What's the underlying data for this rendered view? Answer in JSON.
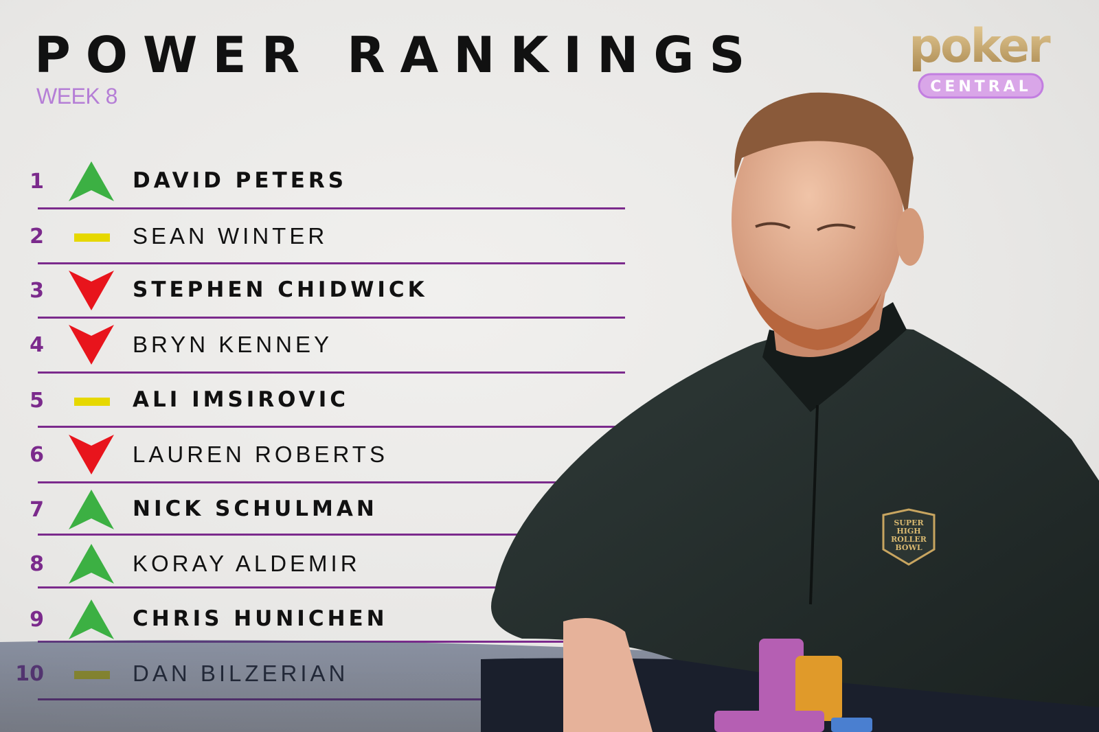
{
  "header": {
    "title": "POWER RANKINGS",
    "subtitle": "WEEK 8"
  },
  "logo": {
    "text_top": "poker",
    "text_bottom": "CENTRAL"
  },
  "badge": {
    "text": "SUPER HIGH ROLLER BOWL"
  },
  "colors": {
    "up": "#3cb043",
    "down": "#e8141c",
    "same": "#e6d800",
    "accent": "#7b2a8c",
    "week": "#b57ed6"
  },
  "rankings": [
    {
      "rank": "1",
      "name": "DAVID PETERS",
      "movement": "up",
      "bold": true
    },
    {
      "rank": "2",
      "name": "SEAN WINTER",
      "movement": "same",
      "bold": false
    },
    {
      "rank": "3",
      "name": "STEPHEN CHIDWICK",
      "movement": "down",
      "bold": true
    },
    {
      "rank": "4",
      "name": "BRYN KENNEY",
      "movement": "down",
      "bold": false
    },
    {
      "rank": "5",
      "name": "ALI IMSIROVIC",
      "movement": "same",
      "bold": true
    },
    {
      "rank": "6",
      "name": "LAUREN ROBERTS",
      "movement": "down",
      "bold": false
    },
    {
      "rank": "7",
      "name": "NICK SCHULMAN",
      "movement": "up",
      "bold": true
    },
    {
      "rank": "8",
      "name": "KORAY ALDEMIR",
      "movement": "up",
      "bold": false
    },
    {
      "rank": "9",
      "name": "CHRIS HUNICHEN",
      "movement": "up",
      "bold": true
    },
    {
      "rank": "10",
      "name": "DAN BILZERIAN",
      "movement": "same",
      "bold": false
    }
  ]
}
